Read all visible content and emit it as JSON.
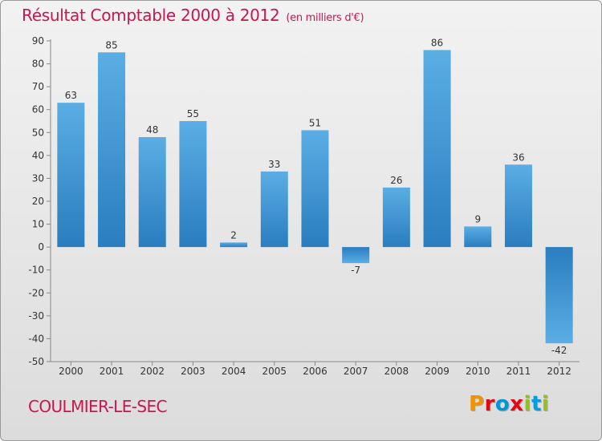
{
  "header": {
    "title": "Résultat Comptable 2000 à 2012",
    "subtitle": "(en milliers d'€)"
  },
  "footer": {
    "commune": "COULMIER-LE-SEC",
    "logo_text": "Proxiti",
    "logo_colors": [
      "#f39200",
      "#e30613",
      "#0096d6",
      "#e30613",
      "#95c11f",
      "#009fe3",
      "#95c11f"
    ]
  },
  "colors": {
    "bar_light": "#5aaee4",
    "bar_dark": "#2a7dbf",
    "accent": "#c8174e"
  },
  "chart_data": {
    "type": "bar",
    "title": "Résultat Comptable 2000 à 2012",
    "subtitle": "(en milliers d'€)",
    "xlabel": "",
    "ylabel": "",
    "categories": [
      "2000",
      "2001",
      "2002",
      "2003",
      "2004",
      "2005",
      "2006",
      "2007",
      "2008",
      "2009",
      "2010",
      "2011",
      "2012"
    ],
    "values": [
      63,
      85,
      48,
      55,
      2,
      33,
      51,
      -7,
      26,
      86,
      9,
      36,
      -42
    ],
    "ylim": [
      -50,
      90
    ],
    "yticks": [
      90,
      80,
      70,
      60,
      50,
      40,
      30,
      20,
      10,
      0,
      -10,
      -20,
      -30,
      -40,
      -50
    ],
    "grid": false
  }
}
